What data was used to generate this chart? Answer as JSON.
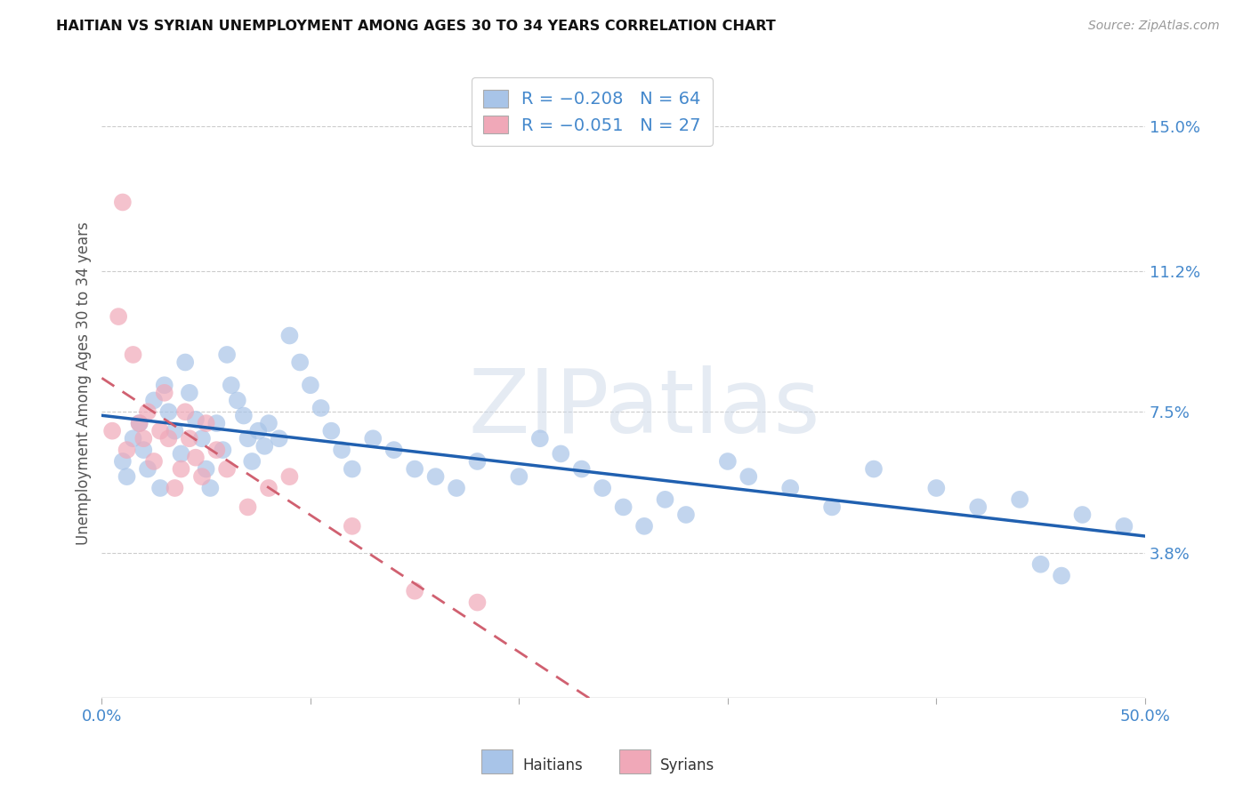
{
  "title": "HAITIAN VS SYRIAN UNEMPLOYMENT AMONG AGES 30 TO 34 YEARS CORRELATION CHART",
  "source": "Source: ZipAtlas.com",
  "ylabel": "Unemployment Among Ages 30 to 34 years",
  "xlim": [
    0.0,
    0.5
  ],
  "ylim": [
    0.0,
    0.165
  ],
  "xtick_positions": [
    0.0,
    0.1,
    0.2,
    0.3,
    0.4,
    0.5
  ],
  "xticklabels": [
    "0.0%",
    "",
    "",
    "",
    "",
    "50.0%"
  ],
  "ytick_positions": [
    0.038,
    0.075,
    0.112,
    0.15
  ],
  "ytick_labels": [
    "3.8%",
    "7.5%",
    "11.2%",
    "15.0%"
  ],
  "haitian_color": "#a8c4e8",
  "syrian_color": "#f0a8b8",
  "haitian_line_color": "#2060b0",
  "syrian_line_color": "#d06070",
  "tick_color": "#4488cc",
  "watermark": "ZIPatlas",
  "haitian_points": [
    [
      0.01,
      0.062
    ],
    [
      0.012,
      0.058
    ],
    [
      0.015,
      0.068
    ],
    [
      0.018,
      0.072
    ],
    [
      0.02,
      0.065
    ],
    [
      0.022,
      0.06
    ],
    [
      0.025,
      0.078
    ],
    [
      0.028,
      0.055
    ],
    [
      0.03,
      0.082
    ],
    [
      0.032,
      0.075
    ],
    [
      0.035,
      0.07
    ],
    [
      0.038,
      0.064
    ],
    [
      0.04,
      0.088
    ],
    [
      0.042,
      0.08
    ],
    [
      0.045,
      0.073
    ],
    [
      0.048,
      0.068
    ],
    [
      0.05,
      0.06
    ],
    [
      0.052,
      0.055
    ],
    [
      0.055,
      0.072
    ],
    [
      0.058,
      0.065
    ],
    [
      0.06,
      0.09
    ],
    [
      0.062,
      0.082
    ],
    [
      0.065,
      0.078
    ],
    [
      0.068,
      0.074
    ],
    [
      0.07,
      0.068
    ],
    [
      0.072,
      0.062
    ],
    [
      0.075,
      0.07
    ],
    [
      0.078,
      0.066
    ],
    [
      0.08,
      0.072
    ],
    [
      0.085,
      0.068
    ],
    [
      0.09,
      0.095
    ],
    [
      0.095,
      0.088
    ],
    [
      0.1,
      0.082
    ],
    [
      0.105,
      0.076
    ],
    [
      0.11,
      0.07
    ],
    [
      0.115,
      0.065
    ],
    [
      0.12,
      0.06
    ],
    [
      0.13,
      0.068
    ],
    [
      0.14,
      0.065
    ],
    [
      0.15,
      0.06
    ],
    [
      0.16,
      0.058
    ],
    [
      0.17,
      0.055
    ],
    [
      0.18,
      0.062
    ],
    [
      0.2,
      0.058
    ],
    [
      0.21,
      0.068
    ],
    [
      0.22,
      0.064
    ],
    [
      0.23,
      0.06
    ],
    [
      0.24,
      0.055
    ],
    [
      0.25,
      0.05
    ],
    [
      0.26,
      0.045
    ],
    [
      0.27,
      0.052
    ],
    [
      0.28,
      0.048
    ],
    [
      0.3,
      0.062
    ],
    [
      0.31,
      0.058
    ],
    [
      0.33,
      0.055
    ],
    [
      0.35,
      0.05
    ],
    [
      0.37,
      0.06
    ],
    [
      0.4,
      0.055
    ],
    [
      0.42,
      0.05
    ],
    [
      0.44,
      0.052
    ],
    [
      0.45,
      0.035
    ],
    [
      0.46,
      0.032
    ],
    [
      0.47,
      0.048
    ],
    [
      0.49,
      0.045
    ]
  ],
  "syrian_points": [
    [
      0.005,
      0.07
    ],
    [
      0.008,
      0.1
    ],
    [
      0.01,
      0.13
    ],
    [
      0.012,
      0.065
    ],
    [
      0.015,
      0.09
    ],
    [
      0.018,
      0.072
    ],
    [
      0.02,
      0.068
    ],
    [
      0.022,
      0.075
    ],
    [
      0.025,
      0.062
    ],
    [
      0.028,
      0.07
    ],
    [
      0.03,
      0.08
    ],
    [
      0.032,
      0.068
    ],
    [
      0.035,
      0.055
    ],
    [
      0.038,
      0.06
    ],
    [
      0.04,
      0.075
    ],
    [
      0.042,
      0.068
    ],
    [
      0.045,
      0.063
    ],
    [
      0.048,
      0.058
    ],
    [
      0.05,
      0.072
    ],
    [
      0.055,
      0.065
    ],
    [
      0.06,
      0.06
    ],
    [
      0.07,
      0.05
    ],
    [
      0.08,
      0.055
    ],
    [
      0.09,
      0.058
    ],
    [
      0.12,
      0.045
    ],
    [
      0.15,
      0.028
    ],
    [
      0.18,
      0.025
    ]
  ]
}
